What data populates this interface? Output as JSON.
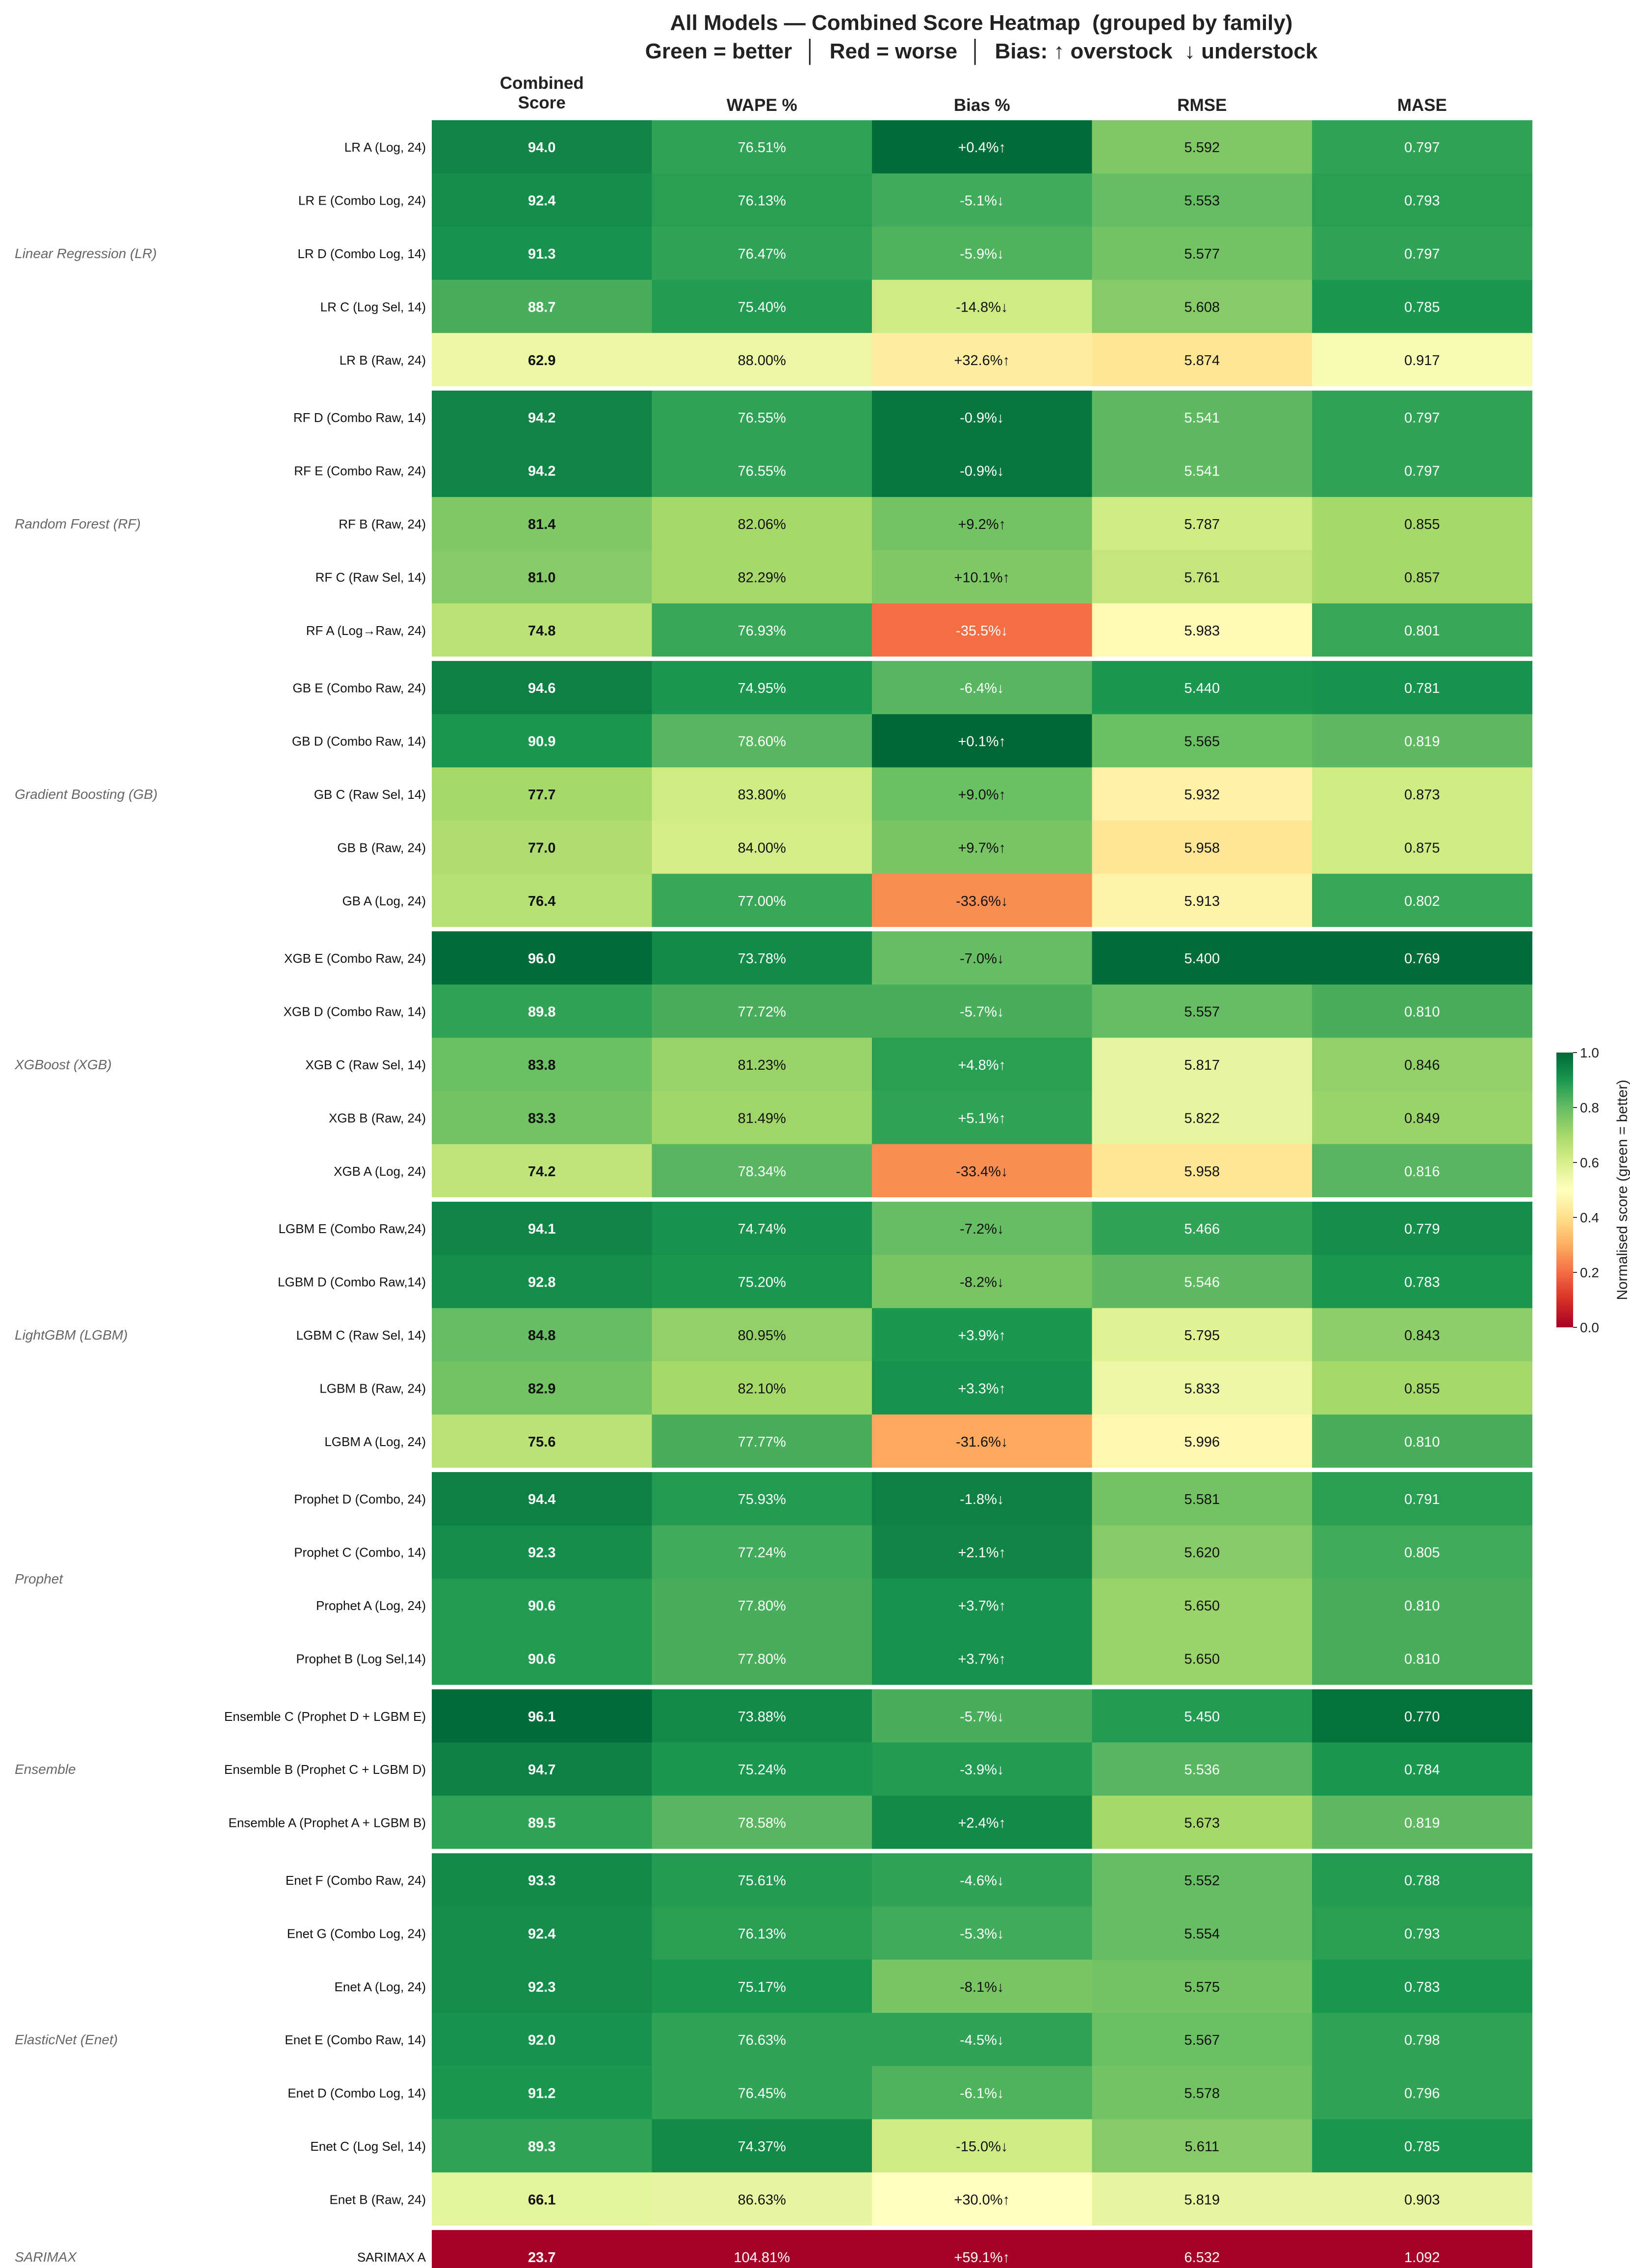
{
  "title": "All Models — Combined Score Heatmap  (grouped by family)",
  "subtitle": "Green = better  │  Red = worse  │  Bias: ↑ overstock  ↓ understock",
  "chart_data": {
    "type": "heatmap",
    "columns": [
      "Combined\nScore",
      "WAPE %",
      "Bias %",
      "RMSE",
      "MASE"
    ],
    "colorbar": {
      "label": "Normalised score  (green = better)",
      "range": [
        0.0,
        1.0
      ],
      "ticks": [
        "0.0",
        "0.2",
        "0.4",
        "0.6",
        "0.8",
        "1.0"
      ],
      "colormap": "RdYlGn"
    },
    "families": [
      {
        "name": "Linear Regression (LR)",
        "rows": [
          {
            "model": "LR A (Log, 24)",
            "values": [
              "94.0",
              "76.51%",
              "+0.4%↑",
              "5.592",
              "0.797"
            ],
            "scores": [
              0.94,
              0.87,
              0.99,
              0.76,
              0.87
            ]
          },
          {
            "model": "LR E (Combo Log, 24)",
            "values": [
              "92.4",
              "76.13%",
              "-5.1%↓",
              "5.553",
              "0.793"
            ],
            "scores": [
              0.92,
              0.88,
              0.85,
              0.8,
              0.88
            ]
          },
          {
            "model": "LR D (Combo Log, 14)",
            "values": [
              "91.3",
              "76.47%",
              "-5.9%↓",
              "5.577",
              "0.797"
            ],
            "scores": [
              0.91,
              0.87,
              0.83,
              0.78,
              0.87
            ]
          },
          {
            "model": "LR C (Log Sel, 14)",
            "values": [
              "88.7",
              "75.40%",
              "-14.8%↓",
              "5.608",
              "0.785"
            ],
            "scores": [
              0.84,
              0.89,
              0.62,
              0.75,
              0.9
            ]
          },
          {
            "model": "LR B (Raw, 24)",
            "values": [
              "62.9",
              "88.00%",
              "+32.6%↑",
              "5.874",
              "0.917"
            ],
            "scores": [
              0.55,
              0.55,
              0.44,
              0.42,
              0.52
            ]
          }
        ]
      },
      {
        "name": "Random Forest (RF)",
        "rows": [
          {
            "model": "RF D (Combo Raw, 14)",
            "values": [
              "94.2",
              "76.55%",
              "-0.9%↓",
              "5.541",
              "0.797"
            ],
            "scores": [
              0.94,
              0.87,
              0.97,
              0.81,
              0.87
            ]
          },
          {
            "model": "RF E (Combo Raw, 24)",
            "values": [
              "94.2",
              "76.55%",
              "-0.9%↓",
              "5.541",
              "0.797"
            ],
            "scores": [
              0.94,
              0.87,
              0.97,
              0.81,
              0.87
            ]
          },
          {
            "model": "RF B (Raw, 24)",
            "values": [
              "81.4",
              "82.06%",
              "+9.2%↑",
              "5.787",
              "0.855"
            ],
            "scores": [
              0.76,
              0.7,
              0.78,
              0.62,
              0.7
            ]
          },
          {
            "model": "RF C (Raw Sel, 14)",
            "values": [
              "81.0",
              "82.29%",
              "+10.1%↑",
              "5.761",
              "0.857"
            ],
            "scores": [
              0.75,
              0.7,
              0.76,
              0.64,
              0.7
            ]
          },
          {
            "model": "RF A (Log→Raw, 24)",
            "values": [
              "74.8",
              "76.93%",
              "-35.5%↓",
              "5.983",
              "0.801"
            ],
            "scores": [
              0.66,
              0.86,
              0.2,
              0.48,
              0.86
            ]
          }
        ]
      },
      {
        "name": "Gradient Boosting (GB)",
        "rows": [
          {
            "model": "GB E (Combo Raw, 24)",
            "values": [
              "94.6",
              "74.95%",
              "-6.4%↓",
              "5.440",
              "0.781"
            ],
            "scores": [
              0.95,
              0.9,
              0.82,
              0.9,
              0.91
            ]
          },
          {
            "model": "GB D (Combo Raw, 14)",
            "values": [
              "90.9",
              "78.60%",
              "+0.1%↑",
              "5.565",
              "0.819"
            ],
            "scores": [
              0.9,
              0.82,
              1.0,
              0.79,
              0.81
            ]
          },
          {
            "model": "GB C (Raw Sel, 14)",
            "values": [
              "77.7",
              "83.80%",
              "+9.0%↑",
              "5.932",
              "0.873"
            ],
            "scores": [
              0.7,
              0.62,
              0.79,
              0.45,
              0.62
            ]
          },
          {
            "model": "GB B (Raw, 24)",
            "values": [
              "77.0",
              "84.00%",
              "+9.7%↑",
              "5.958",
              "0.875"
            ],
            "scores": [
              0.68,
              0.61,
              0.77,
              0.42,
              0.62
            ]
          },
          {
            "model": "GB A (Log, 24)",
            "values": [
              "76.4",
              "77.00%",
              "-33.6%↓",
              "5.913",
              "0.802"
            ],
            "scores": [
              0.67,
              0.86,
              0.25,
              0.46,
              0.86
            ]
          }
        ]
      },
      {
        "name": "XGBoost (XGB)",
        "rows": [
          {
            "model": "XGB E (Combo Raw, 24)",
            "values": [
              "96.0",
              "73.78%",
              "-7.0%↓",
              "5.400",
              "0.769"
            ],
            "scores": [
              0.99,
              0.93,
              0.8,
              0.99,
              0.99
            ]
          },
          {
            "model": "XGB D (Combo Raw, 14)",
            "values": [
              "89.8",
              "77.72%",
              "-5.7%↓",
              "5.557",
              "0.810"
            ],
            "scores": [
              0.87,
              0.84,
              0.84,
              0.8,
              0.84
            ]
          },
          {
            "model": "XGB C (Raw Sel, 14)",
            "values": [
              "83.8",
              "81.23%",
              "+4.8%↑",
              "5.817",
              "0.846"
            ],
            "scores": [
              0.79,
              0.72,
              0.88,
              0.56,
              0.73
            ]
          },
          {
            "model": "XGB B (Raw, 24)",
            "values": [
              "83.3",
              "81.49%",
              "+5.1%↑",
              "5.822",
              "0.849"
            ],
            "scores": [
              0.78,
              0.71,
              0.87,
              0.56,
              0.72
            ]
          },
          {
            "model": "XGB A (Log, 24)",
            "values": [
              "74.2",
              "78.34%",
              "-33.4%↓",
              "5.958",
              "0.816"
            ],
            "scores": [
              0.65,
              0.82,
              0.25,
              0.42,
              0.82
            ]
          }
        ]
      },
      {
        "name": "LightGBM (LGBM)",
        "rows": [
          {
            "model": "LGBM E (Combo Raw,24)",
            "values": [
              "94.1",
              "74.74%",
              "-7.2%↓",
              "5.466",
              "0.779"
            ],
            "scores": [
              0.94,
              0.91,
              0.8,
              0.87,
              0.92
            ]
          },
          {
            "model": "LGBM D (Combo Raw,14)",
            "values": [
              "92.8",
              "75.20%",
              "-8.2%↓",
              "5.546",
              "0.783"
            ],
            "scores": [
              0.92,
              0.9,
              0.77,
              0.81,
              0.9
            ]
          },
          {
            "model": "LGBM C (Raw Sel, 14)",
            "values": [
              "84.8",
              "80.95%",
              "+3.9%↑",
              "5.795",
              "0.843"
            ],
            "scores": [
              0.8,
              0.73,
              0.9,
              0.58,
              0.74
            ]
          },
          {
            "model": "LGBM B (Raw, 24)",
            "values": [
              "82.9",
              "82.10%",
              "+3.3%↑",
              "5.833",
              "0.855"
            ],
            "scores": [
              0.78,
              0.7,
              0.91,
              0.55,
              0.7
            ]
          },
          {
            "model": "LGBM A (Log, 24)",
            "values": [
              "75.6",
              "77.77%",
              "-31.6%↓",
              "5.996",
              "0.810"
            ],
            "scores": [
              0.66,
              0.84,
              0.29,
              0.47,
              0.84
            ]
          }
        ]
      },
      {
        "name": "Prophet",
        "rows": [
          {
            "model": "Prophet D (Combo, 24)",
            "values": [
              "94.4",
              "75.93%",
              "-1.8%↓",
              "5.581",
              "0.791"
            ],
            "scores": [
              0.95,
              0.89,
              0.95,
              0.78,
              0.88
            ]
          },
          {
            "model": "Prophet C (Combo, 14)",
            "values": [
              "92.3",
              "77.24%",
              "+2.1%↑",
              "5.620",
              "0.805"
            ],
            "scores": [
              0.92,
              0.85,
              0.94,
              0.75,
              0.85
            ]
          },
          {
            "model": "Prophet A (Log, 24)",
            "values": [
              "90.6",
              "77.80%",
              "+3.7%↑",
              "5.650",
              "0.810"
            ],
            "scores": [
              0.89,
              0.84,
              0.91,
              0.72,
              0.84
            ]
          },
          {
            "model": "Prophet B (Log Sel,14)",
            "values": [
              "90.6",
              "77.80%",
              "+3.7%↑",
              "5.650",
              "0.810"
            ],
            "scores": [
              0.89,
              0.84,
              0.91,
              0.72,
              0.84
            ]
          }
        ]
      },
      {
        "name": "Ensemble",
        "rows": [
          {
            "model": "Ensemble C (Prophet D + LGBM E)",
            "values": [
              "96.1",
              "73.88%",
              "-5.7%↓",
              "5.450",
              "0.770"
            ],
            "scores": [
              0.99,
              0.93,
              0.84,
              0.89,
              0.98
            ]
          },
          {
            "model": "Ensemble B (Prophet C + LGBM D)",
            "values": [
              "94.7",
              "75.24%",
              "-3.9%↓",
              "5.536",
              "0.784"
            ],
            "scores": [
              0.95,
              0.9,
              0.89,
              0.82,
              0.9
            ]
          },
          {
            "model": "Ensemble A (Prophet A + LGBM B)",
            "values": [
              "89.5",
              "78.58%",
              "+2.4%↑",
              "5.673",
              "0.819"
            ],
            "scores": [
              0.87,
              0.82,
              0.93,
              0.7,
              0.81
            ]
          }
        ]
      },
      {
        "name": "ElasticNet (Enet)",
        "rows": [
          {
            "model": "Enet F (Combo Raw, 24)",
            "values": [
              "93.3",
              "75.61%",
              "-4.6%↓",
              "5.552",
              "0.788"
            ],
            "scores": [
              0.93,
              0.89,
              0.87,
              0.8,
              0.89
            ]
          },
          {
            "model": "Enet G (Combo Log, 24)",
            "values": [
              "92.4",
              "76.13%",
              "-5.3%↓",
              "5.554",
              "0.793"
            ],
            "scores": [
              0.92,
              0.88,
              0.85,
              0.8,
              0.88
            ]
          },
          {
            "model": "Enet A (Log, 24)",
            "values": [
              "92.3",
              "75.17%",
              "-8.1%↓",
              "5.575",
              "0.783"
            ],
            "scores": [
              0.92,
              0.9,
              0.77,
              0.78,
              0.9
            ]
          },
          {
            "model": "Enet E (Combo Raw, 14)",
            "values": [
              "92.0",
              "76.63%",
              "-4.5%↓",
              "5.567",
              "0.798"
            ],
            "scores": [
              0.91,
              0.87,
              0.87,
              0.79,
              0.87
            ]
          },
          {
            "model": "Enet D (Combo Log, 14)",
            "values": [
              "91.2",
              "76.45%",
              "-6.1%↓",
              "5.578",
              "0.796"
            ],
            "scores": [
              0.9,
              0.87,
              0.83,
              0.78,
              0.87
            ]
          },
          {
            "model": "Enet C (Log Sel, 14)",
            "values": [
              "89.3",
              "74.37%",
              "-15.0%↓",
              "5.611",
              "0.785"
            ],
            "scores": [
              0.87,
              0.93,
              0.62,
              0.75,
              0.9
            ]
          },
          {
            "model": "Enet B (Raw, 24)",
            "values": [
              "66.1",
              "86.63%",
              "+30.0%↑",
              "5.819",
              "0.903"
            ],
            "scores": [
              0.57,
              0.56,
              0.5,
              0.56,
              0.56
            ]
          }
        ]
      },
      {
        "name": "SARIMAX",
        "rows": [
          {
            "model": "SARIMAX A",
            "values": [
              "23.7",
              "104.81%",
              "+59.1%↑",
              "6.532",
              "1.092"
            ],
            "scores": [
              0.0,
              0.0,
              0.0,
              0.0,
              0.0
            ]
          }
        ]
      }
    ]
  }
}
